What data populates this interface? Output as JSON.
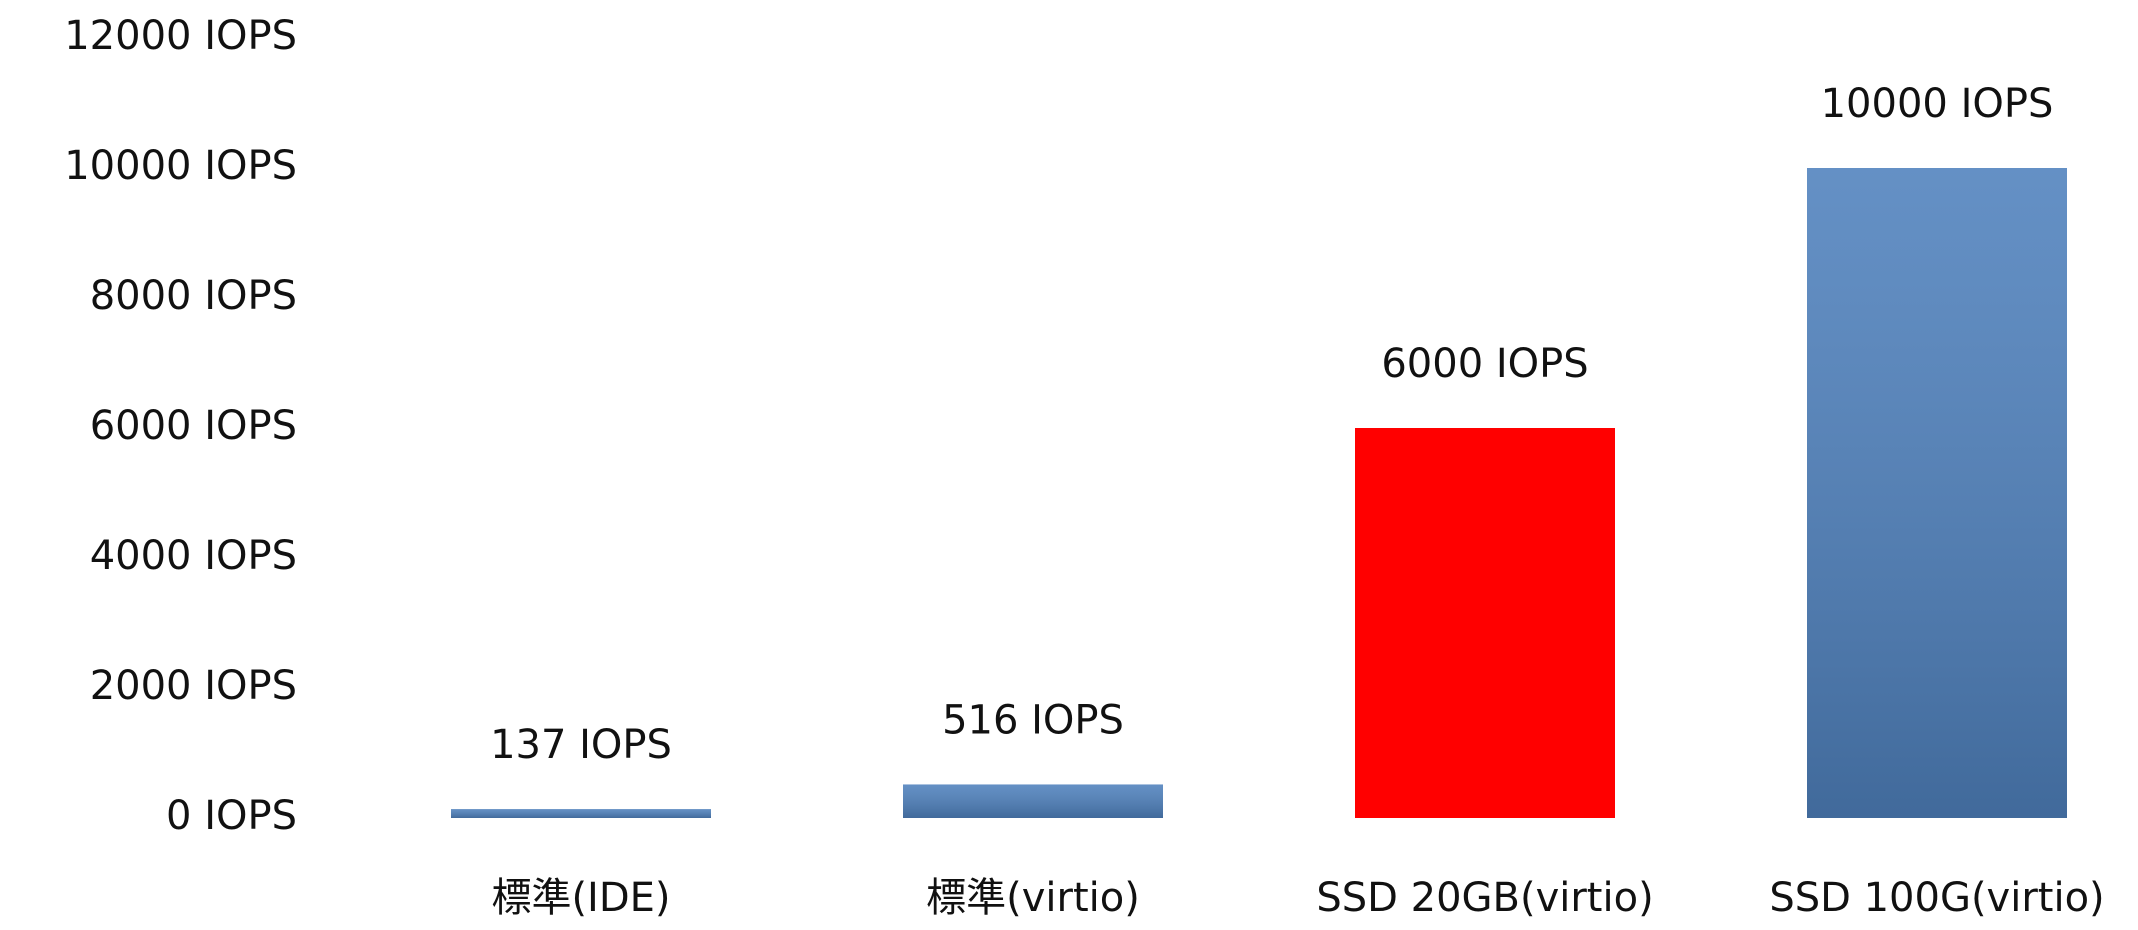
{
  "chart_data": {
    "type": "bar",
    "categories": [
      "標準(IDE)",
      "標準(virtio)",
      "SSD 20GB(virtio)",
      "SSD 100G(virtio)"
    ],
    "values": [
      137,
      516,
      6000,
      10000
    ],
    "value_labels": [
      "137 IOPS",
      "516 IOPS",
      "6000 IOPS",
      "10000 IOPS"
    ],
    "colors": [
      "#4f81bd",
      "#4f81bd",
      "#ff0000",
      "#4f81bd"
    ],
    "ylim": [
      0,
      12000
    ],
    "yticks": [
      {
        "value": 0,
        "label": "0 IOPS"
      },
      {
        "value": 2000,
        "label": "2000 IOPS"
      },
      {
        "value": 4000,
        "label": "4000 IOPS"
      },
      {
        "value": 6000,
        "label": "6000 IOPS"
      },
      {
        "value": 8000,
        "label": "8000 IOPS"
      },
      {
        "value": 10000,
        "label": "10000 IOPS"
      },
      {
        "value": 12000,
        "label": "12000 IOPS"
      }
    ],
    "grid": false
  }
}
